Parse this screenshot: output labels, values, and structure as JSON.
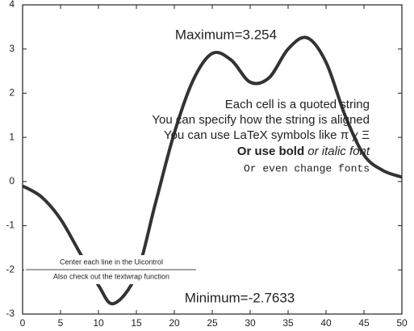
{
  "chart_data": {
    "type": "line",
    "x": [
      0,
      2.5,
      5,
      7.5,
      10,
      12,
      15,
      17.5,
      20,
      22.5,
      25,
      27.5,
      30,
      32.5,
      35,
      37.5,
      40,
      42.5,
      45,
      47.5,
      50
    ],
    "series": [
      {
        "color": "#333333",
        "values": [
          -0.1,
          -0.35,
          -0.85,
          -1.6,
          -2.35,
          -2.7633,
          -2.1,
          -0.5,
          1.1,
          2.3,
          2.9,
          2.75,
          2.25,
          2.35,
          3.0,
          3.254,
          2.7,
          1.5,
          0.6,
          0.25,
          0.1
        ]
      }
    ],
    "xlim": [
      0,
      50
    ],
    "xticks": [
      0,
      5,
      10,
      15,
      20,
      25,
      30,
      35,
      40,
      45,
      50
    ],
    "ylim": [
      -3,
      4
    ],
    "yticks": [
      -3,
      -2,
      -1,
      0,
      1,
      2,
      3,
      4
    ],
    "annotations": [
      "Maximum=3.254",
      "Minimum=-2.7633"
    ],
    "text_block": [
      "Each cell is a quoted string",
      "You can specify how the string is aligned",
      "You can use LaTeX symbols like π χ Ξ",
      "Or use bold",
      "or italic font",
      "Or even change fonts"
    ],
    "uicontrol": [
      "Center each line in the Uicontrol",
      "Also check out the textwrap function"
    ]
  }
}
